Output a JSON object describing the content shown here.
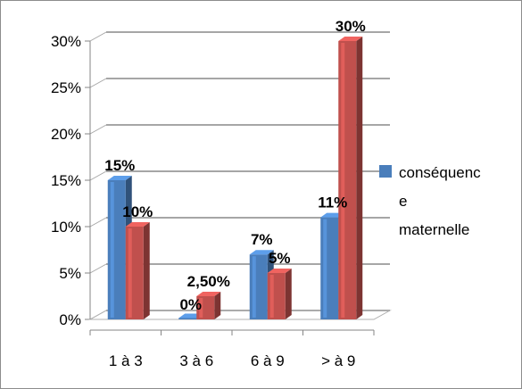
{
  "chart_data": {
    "type": "bar",
    "style": "3d-clustered-column",
    "title": "",
    "xlabel": "",
    "ylabel": "",
    "categories": [
      "1 à 3",
      "3 à 6",
      "6 à 9",
      "> à 9"
    ],
    "series": [
      {
        "name": "",
        "color": "#4a7ebb",
        "values": [
          15,
          0,
          7,
          11
        ],
        "data_labels": [
          "15%",
          "0%",
          "7%",
          "11%"
        ]
      },
      {
        "name": "",
        "color": "#c0504d",
        "values": [
          10,
          2.5,
          5,
          30
        ],
        "data_labels": [
          "10%",
          "2,50%",
          "5%",
          "30%"
        ]
      }
    ],
    "yticks": [
      "0%",
      "5%",
      "10%",
      "15%",
      "20%",
      "25%",
      "30%"
    ],
    "ylim": [
      0,
      30
    ],
    "grid": true,
    "legend": {
      "placement": "right",
      "lines": [
        "conséquenc",
        "e",
        "maternelle"
      ],
      "color": "#4a7ebb"
    }
  }
}
